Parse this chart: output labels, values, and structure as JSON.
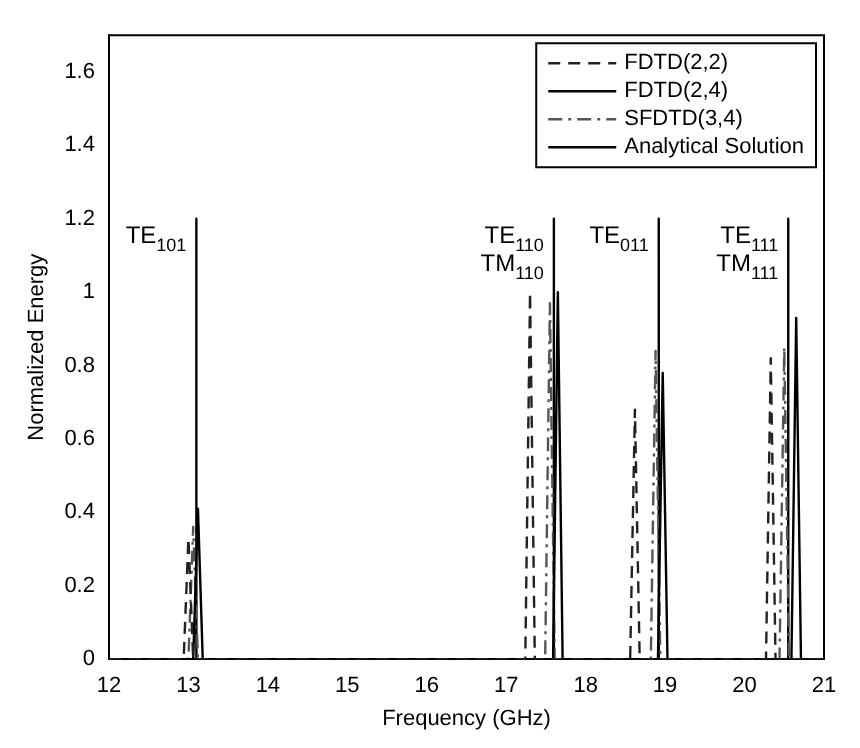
{
  "chart_data": {
    "type": "line",
    "xlabel": "Frequency (GHz)",
    "ylabel": "Normalized Energy",
    "xlim": [
      12,
      21
    ],
    "xticks": [
      12,
      13,
      14,
      15,
      16,
      17,
      18,
      19,
      20,
      21
    ],
    "ylim": [
      0,
      1.7
    ],
    "yticks": [
      0,
      0.2,
      0.4,
      0.6,
      0.8,
      1,
      1.2,
      1.4,
      1.6
    ],
    "grid": false,
    "legend": "top right",
    "series": [
      {
        "name": "FDTD(2,2)",
        "color": "#222222",
        "line_style": "dashed",
        "x": [
          12,
          12.94,
          13.0,
          13.06,
          17.24,
          17.3,
          17.36,
          18.56,
          18.62,
          18.68,
          20.27,
          20.33,
          20.39,
          21
        ],
        "values": [
          0,
          0,
          0.33,
          0,
          0,
          1.0,
          0,
          0,
          0.68,
          0,
          0,
          0.82,
          0,
          0
        ]
      },
      {
        "name": "FDTD(2,4)",
        "color": "#000000",
        "line_style": "solid",
        "x": [
          12,
          13.06,
          13.12,
          13.18,
          17.59,
          17.65,
          17.71,
          18.91,
          18.97,
          19.03,
          20.59,
          20.65,
          20.71,
          21
        ],
        "values": [
          0,
          0,
          0.41,
          0,
          0,
          1.0,
          0,
          0,
          0.78,
          0,
          0,
          0.93,
          0,
          0
        ]
      },
      {
        "name": "SFDTD(3,4)",
        "color": "#555555",
        "line_style": "dotted",
        "x": [
          12,
          13.0,
          13.06,
          13.12,
          17.49,
          17.55,
          17.61,
          18.82,
          18.88,
          18.94,
          20.44,
          20.5,
          20.56,
          21
        ],
        "values": [
          0,
          0,
          0.36,
          0,
          0,
          0.97,
          0,
          0,
          0.84,
          0,
          0,
          0.85,
          0,
          0
        ]
      },
      {
        "name": "Analytical Solution",
        "color": "#000000",
        "line_style": "solid",
        "x": [
          12,
          13.1,
          13.1,
          13.1,
          17.6,
          17.6,
          17.6,
          18.92,
          18.92,
          18.92,
          20.55,
          20.55,
          20.55,
          21
        ],
        "values": [
          0,
          0,
          1.2,
          0,
          0,
          1.2,
          0,
          0,
          1.2,
          0,
          0,
          1.2,
          0,
          0
        ]
      }
    ],
    "annotations": [
      {
        "text": "TE$_{101}$",
        "x": 13.1,
        "y": 1.2
      },
      {
        "text": "TE$_{110}$\nTM$_{110}$",
        "x": 17.6,
        "y": 1.2
      },
      {
        "text": "TE$_{011}$",
        "x": 18.92,
        "y": 1.2
      },
      {
        "text": "TE$_{111}$\nTM$_{111}$",
        "x": 20.55,
        "y": 1.2
      }
    ]
  }
}
